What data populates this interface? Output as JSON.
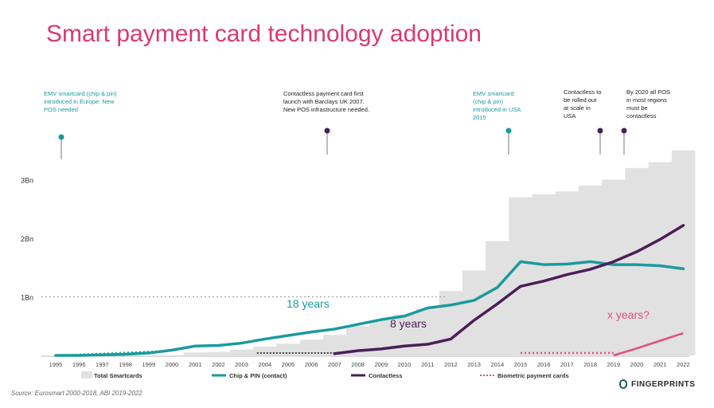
{
  "title": "Smart payment card technology adoption",
  "source": "Source: Eurosmart 2000-2018, ABI 2019-2022",
  "brand": "FINGERPRINTS",
  "colors": {
    "title": "#d83b6e",
    "teal": "#1a9a9e",
    "purple": "#4a1e57",
    "pink": "#e0507c",
    "bars": "#e1e1e1",
    "marker_teal": "#1a9a9e",
    "marker_purple": "#4a1e57"
  },
  "annotations": [
    {
      "year": 1995.5,
      "color": "teal",
      "lines": [
        "EMV smartcard (chip & pin)",
        "introduced in Europe. New",
        "POS needed"
      ]
    },
    {
      "year": 2006.5,
      "color": "purple",
      "lines": [
        "Contactless payment card first",
        "launch with Barclays UK 2007.",
        "New POS infrastructure needed."
      ]
    },
    {
      "year": 2014.5,
      "color": "teal",
      "lines": [
        "EMV smartcard",
        "(chip & pin)",
        "introduced in USA",
        "2015"
      ]
    },
    {
      "year": 2018.5,
      "color": "purple",
      "lines": [
        "Contactless to",
        "be rolled out",
        "at scale in",
        "USA"
      ]
    },
    {
      "year": 2019.5,
      "color": "purple",
      "lines": [
        "By 2020 all POS",
        "in most regions",
        "must be",
        "contactless"
      ]
    }
  ],
  "callouts": {
    "chip_years": "18 years",
    "contactless_years": "8 years",
    "biometric_years": "x years?"
  },
  "chart_data": {
    "type": "line",
    "title": "Smart payment card technology adoption",
    "xlabel": "",
    "ylabel": "",
    "x": [
      1995,
      1996,
      1997,
      1998,
      1999,
      2000,
      2001,
      2002,
      2003,
      2004,
      2005,
      2006,
      2007,
      2008,
      2009,
      2010,
      2011,
      2012,
      2013,
      2014,
      2015,
      2016,
      2017,
      2018,
      2019,
      2020,
      2021,
      2022
    ],
    "x_tick_labels": [
      "1995",
      "1996",
      "1997",
      "1998",
      "1999",
      "2000",
      "2001",
      "2002",
      "2003",
      "2004",
      "2005",
      "2006",
      "2007",
      "2008",
      "2009",
      "2010",
      "2011",
      "2012",
      "2013",
      "2014",
      "2015",
      "2016",
      "2017",
      "2018",
      "2019",
      "2020",
      "2021",
      "2022"
    ],
    "y_ticks": [
      {
        "value": 1,
        "label": "1Bn"
      },
      {
        "value": 2,
        "label": "2Bn"
      },
      {
        "value": 3,
        "label": "3Bn"
      }
    ],
    "ylim": [
      0,
      3.5
    ],
    "bars": {
      "name": "Total Smartcards",
      "values": [
        0.0,
        0.0,
        0.0,
        0.0,
        0.0,
        0.0,
        0.05,
        0.06,
        0.1,
        0.15,
        0.2,
        0.27,
        0.35,
        0.5,
        0.6,
        0.7,
        0.8,
        1.1,
        1.45,
        1.95,
        2.7,
        2.75,
        2.8,
        2.9,
        3.0,
        3.2,
        3.3,
        3.5
      ]
    },
    "series": [
      {
        "name": "Chip & PIN (contact)",
        "style": "solid",
        "color": "teal",
        "points": [
          [
            1995,
            0.0
          ],
          [
            1996,
            0.0
          ],
          [
            1997,
            0.01
          ],
          [
            1998,
            0.02
          ],
          [
            1999,
            0.04
          ],
          [
            2000,
            0.09
          ],
          [
            2001,
            0.16
          ],
          [
            2002,
            0.17
          ],
          [
            2003,
            0.21
          ],
          [
            2004,
            0.28
          ],
          [
            2005,
            0.34
          ],
          [
            2006,
            0.4
          ],
          [
            2007,
            0.45
          ],
          [
            2008,
            0.53
          ],
          [
            2009,
            0.61
          ],
          [
            2010,
            0.67
          ],
          [
            2011,
            0.81
          ],
          [
            2012,
            0.86
          ],
          [
            2013,
            0.94
          ],
          [
            2014,
            1.16
          ],
          [
            2015,
            1.6
          ],
          [
            2016,
            1.55
          ],
          [
            2017,
            1.56
          ],
          [
            2018,
            1.6
          ],
          [
            2019,
            1.55
          ],
          [
            2020,
            1.55
          ],
          [
            2021,
            1.53
          ],
          [
            2022,
            1.48
          ]
        ]
      },
      {
        "name": "Contactless",
        "style": "solid",
        "color": "purple",
        "points": [
          [
            2007,
            0.03
          ],
          [
            2008,
            0.08
          ],
          [
            2009,
            0.11
          ],
          [
            2010,
            0.16
          ],
          [
            2011,
            0.19
          ],
          [
            2012,
            0.28
          ],
          [
            2013,
            0.6
          ],
          [
            2014,
            0.88
          ],
          [
            2015,
            1.18
          ],
          [
            2016,
            1.27
          ],
          [
            2017,
            1.38
          ],
          [
            2018,
            1.47
          ],
          [
            2019,
            1.6
          ],
          [
            2020,
            1.77
          ],
          [
            2021,
            1.98
          ],
          [
            2022,
            2.22
          ]
        ]
      },
      {
        "name": "Biometric payment cards",
        "style": "dotted",
        "color": "pink",
        "points": [
          [
            2015,
            0.0
          ],
          [
            2016,
            0.0
          ],
          [
            2017,
            0.0
          ],
          [
            2018,
            0.0
          ],
          [
            2019,
            0.0
          ],
          [
            2020,
            0.12
          ],
          [
            2021,
            0.25
          ],
          [
            2022,
            0.38
          ]
        ]
      }
    ],
    "legend": {
      "position": "bottom",
      "items": [
        {
          "label": "Total Smartcards",
          "kind": "bar"
        },
        {
          "label": "Chip & PIN (contact)",
          "kind": "line",
          "color": "teal"
        },
        {
          "label": "Contactless",
          "kind": "line",
          "color": "purple"
        },
        {
          "label": "Biometric payment cards",
          "kind": "dotted",
          "color": "pink"
        }
      ]
    },
    "grid": false
  }
}
